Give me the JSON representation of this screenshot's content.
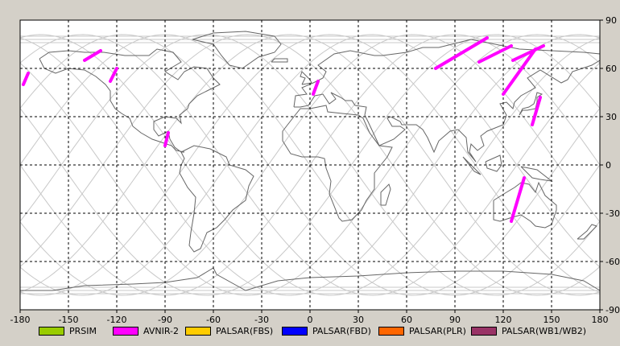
{
  "map": {
    "x_ticks": [
      "-180",
      "-150",
      "-120",
      "-90",
      "-60",
      "-30",
      "0",
      "30",
      "60",
      "90",
      "120",
      "150",
      "180"
    ],
    "y_ticks": [
      "90",
      "60",
      "30",
      "0",
      "-30",
      "-60",
      "-90"
    ],
    "lon_range": [
      -180,
      180
    ],
    "lat_range": [
      -90,
      90
    ],
    "grid": true,
    "background_color": "#ffffff",
    "coast_color": "#666666",
    "orbit_color": "#c8c8c8",
    "grid_color": "#000000"
  },
  "swaths": [
    {
      "sensor": "AVNIR-2",
      "lon_start": -178,
      "lat_start": 50,
      "lon_end": -175,
      "lat_end": 57
    },
    {
      "sensor": "AVNIR-2",
      "lon_start": -140,
      "lat_start": 65,
      "lon_end": -130,
      "lat_end": 71
    },
    {
      "sensor": "AVNIR-2",
      "lon_start": -124,
      "lat_start": 52,
      "lon_end": -120,
      "lat_end": 60
    },
    {
      "sensor": "AVNIR-2",
      "lon_start": -90,
      "lat_start": 12,
      "lon_end": -88,
      "lat_end": 20
    },
    {
      "sensor": "AVNIR-2",
      "lon_start": 2,
      "lat_start": 44,
      "lon_end": 5,
      "lat_end": 52
    },
    {
      "sensor": "AVNIR-2",
      "lon_start": 78,
      "lat_start": 60,
      "lon_end": 110,
      "lat_end": 79
    },
    {
      "sensor": "AVNIR-2",
      "lon_start": 105,
      "lat_start": 64,
      "lon_end": 125,
      "lat_end": 74
    },
    {
      "sensor": "AVNIR-2",
      "lon_start": 120,
      "lat_start": 44,
      "lon_end": 140,
      "lat_end": 72
    },
    {
      "sensor": "AVNIR-2",
      "lon_start": 126,
      "lat_start": 65,
      "lon_end": 145,
      "lat_end": 74
    },
    {
      "sensor": "AVNIR-2",
      "lon_start": 138,
      "lat_start": 25,
      "lon_end": 143,
      "lat_end": 42
    },
    {
      "sensor": "AVNIR-2",
      "lon_start": 125,
      "lat_start": -35,
      "lon_end": 133,
      "lat_end": -8
    }
  ],
  "legend": [
    {
      "label": "PRSIM",
      "color": "#99cc00"
    },
    {
      "label": "AVNIR-2",
      "color": "#ff00ff"
    },
    {
      "label": "PALSAR(FBS)",
      "color": "#ffcc00"
    },
    {
      "label": "PALSAR(FBD)",
      "color": "#0000ff"
    },
    {
      "label": "PALSAR(PLR)",
      "color": "#ff6600"
    },
    {
      "label": "PALSAR(WB1/WB2)",
      "color": "#993366"
    }
  ]
}
